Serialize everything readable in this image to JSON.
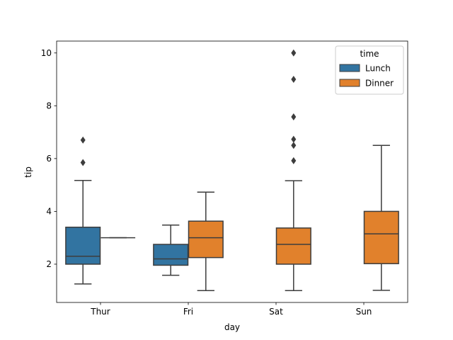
{
  "chart_data": {
    "type": "box",
    "xlabel": "day",
    "ylabel": "tip",
    "categories": [
      "Thur",
      "Fri",
      "Sat",
      "Sun"
    ],
    "ylim": [
      0.55,
      10.45
    ],
    "yticks": [
      2,
      4,
      6,
      8,
      10
    ],
    "grid": false,
    "legend": {
      "title": "time",
      "placement": "top-right",
      "entries": [
        {
          "name": "Lunch",
          "color": "#3274a1"
        },
        {
          "name": "Dinner",
          "color": "#e1812c"
        }
      ]
    },
    "series": [
      {
        "name": "Lunch",
        "color": "#3274a1",
        "boxes": [
          {
            "category": "Thur",
            "whislo": 1.25,
            "q1": 2.0,
            "median": 2.3,
            "q3": 3.4,
            "whishi": 5.17,
            "fliers": [
              5.85,
              6.7
            ]
          },
          {
            "category": "Fri",
            "whislo": 1.58,
            "q1": 1.96,
            "median": 2.2,
            "q3": 2.75,
            "whishi": 3.48,
            "fliers": []
          },
          null,
          null
        ]
      },
      {
        "name": "Dinner",
        "color": "#e1812c",
        "boxes": [
          {
            "category": "Thur",
            "whislo": 3.0,
            "q1": 3.0,
            "median": 3.0,
            "q3": 3.0,
            "whishi": 3.0,
            "fliers": []
          },
          {
            "category": "Fri",
            "whislo": 1.0,
            "q1": 2.25,
            "median": 3.0,
            "q3": 3.63,
            "whishi": 4.73,
            "fliers": []
          },
          {
            "category": "Sat",
            "whislo": 1.0,
            "q1": 2.0,
            "median": 2.75,
            "q3": 3.37,
            "whishi": 5.16,
            "fliers": [
              5.92,
              6.5,
              6.73,
              7.58,
              9.0,
              10.0
            ]
          },
          {
            "category": "Sun",
            "whislo": 1.01,
            "q1": 2.02,
            "median": 3.15,
            "q3": 4.0,
            "whishi": 6.5,
            "fliers": []
          }
        ]
      }
    ]
  }
}
